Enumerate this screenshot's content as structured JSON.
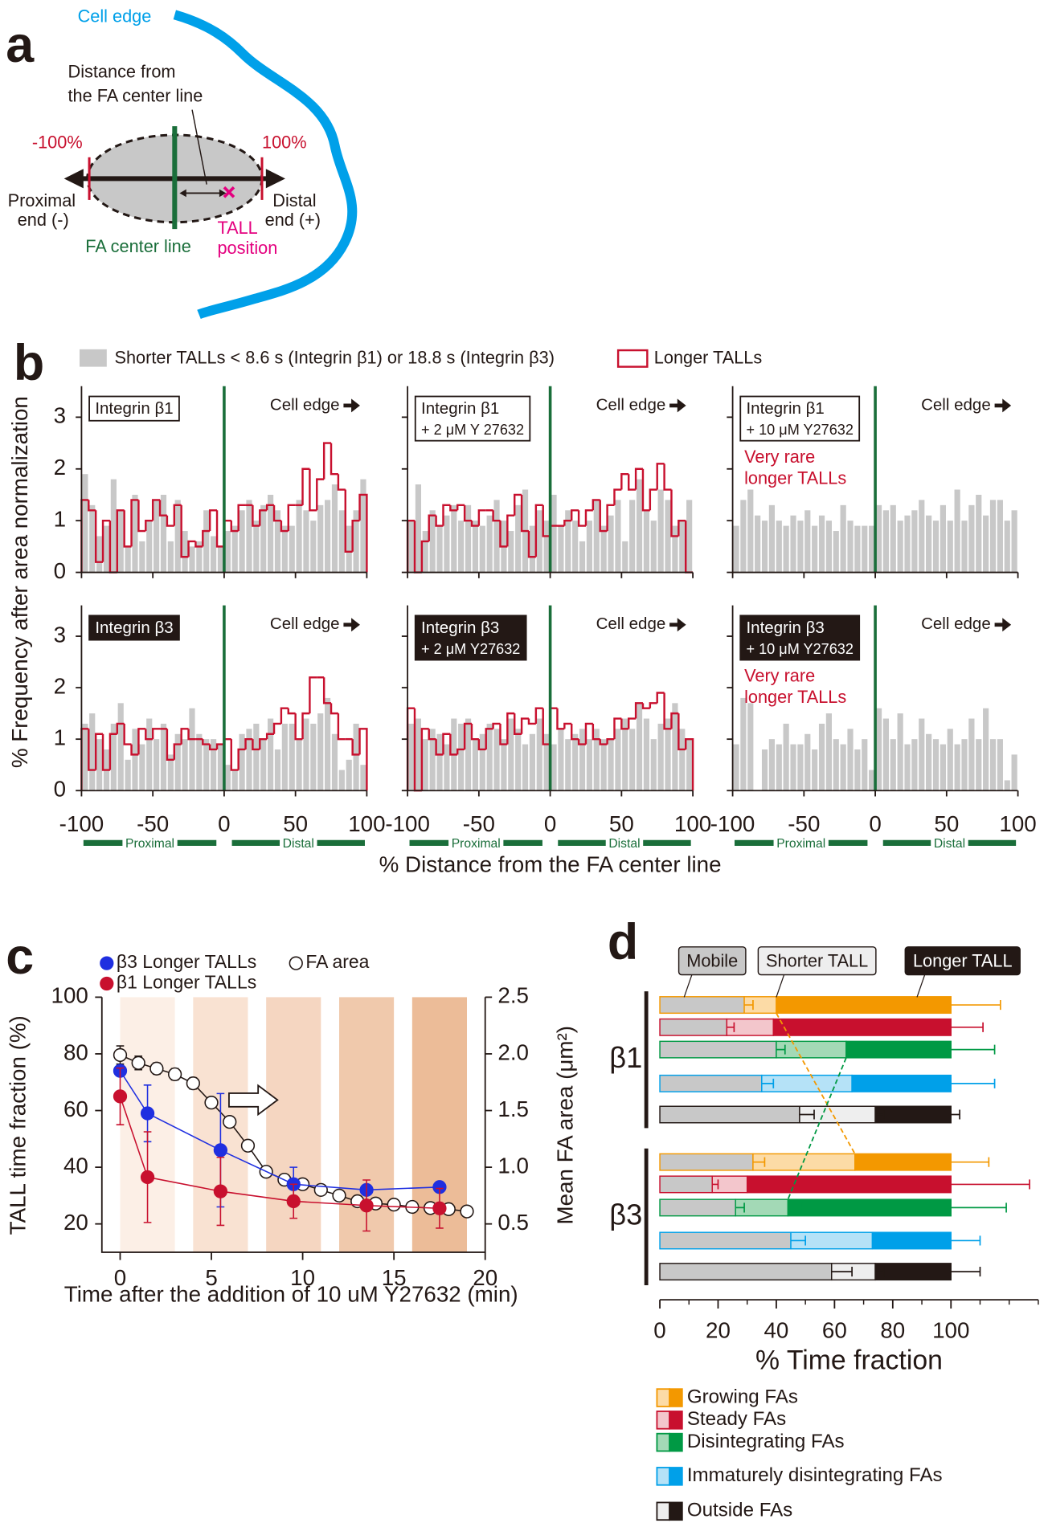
{
  "diagram": {
    "panel": "a",
    "cell_edge": "Cell edge",
    "distance_label": [
      "Distance from",
      "the FA center line"
    ],
    "minus": "-100%",
    "plus": "100%",
    "proximal": [
      "Proximal",
      "end (-)"
    ],
    "distal": [
      "Distal",
      "end (+)"
    ],
    "tall": [
      "TALL",
      "position"
    ],
    "center_line": "FA center line"
  },
  "chart_data": [
    {
      "type": "histogram",
      "panel": "b",
      "series": [
        {
          "name": "Shorter TALLs < 8.6 s (Integrin β1) or 18.8 s (Integrin β3)",
          "color": "#c8c8c8"
        },
        {
          "name": "Longer TALLs",
          "color": "#c8102e"
        }
      ],
      "ylabel": "% Frequency after area normalization",
      "xlabel": "% Distance from the FA center line",
      "edge_label": "Cell edge",
      "region_labels": [
        "Proximal",
        "Distal"
      ],
      "xlim": [
        -100,
        100
      ],
      "xticks": [
        -100,
        -50,
        0,
        50,
        100
      ],
      "ylim": [
        0,
        3.6
      ],
      "yticks": [
        0,
        1,
        2,
        3
      ],
      "bins": [
        -100,
        -95,
        -90,
        -85,
        -80,
        -75,
        -70,
        -65,
        -60,
        -55,
        -50,
        -45,
        -40,
        -35,
        -30,
        -25,
        -20,
        -15,
        -10,
        -5,
        0,
        5,
        10,
        15,
        20,
        25,
        30,
        35,
        40,
        45,
        50,
        55,
        60,
        65,
        70,
        75,
        80,
        85,
        90,
        95,
        100
      ],
      "panels": [
        {
          "label": [
            "Integrin β1"
          ],
          "dark": false,
          "values": [
            1.9,
            1.3,
            0.7,
            0.9,
            1.8,
            1.2,
            0.5,
            1.5,
            0.6,
            1.0,
            1.4,
            1.5,
            0.6,
            1.4,
            0.8,
            0.5,
            0.6,
            1.2,
            0.7,
            0.5,
            0.8,
            0.9,
            1.2,
            1.4,
            1.0,
            1.3,
            1.5,
            1.2,
            0.9,
            0.9,
            1.4,
            1.2,
            1.0,
            1.3,
            1.4,
            1.7,
            1.2,
            0.9,
            1.2,
            1.8
          ],
          "values2": [
            1.4,
            1.2,
            0.2,
            1.0,
            0.0,
            1.2,
            0.5,
            1.4,
            0.8,
            1.0,
            1.4,
            1.1,
            0.9,
            1.3,
            0.3,
            0.6,
            0.5,
            0.8,
            1.2,
            0.5,
            1.0,
            0.8,
            1.3,
            1.3,
            0.9,
            1.2,
            1.3,
            1.0,
            0.8,
            1.3,
            1.3,
            2.0,
            1.2,
            1.8,
            2.5,
            1.9,
            1.6,
            0.4,
            1.0,
            1.5
          ]
        },
        {
          "label": [
            "Integrin β1",
            "+ 2 μM Y 27632"
          ],
          "dark": false,
          "values": [
            1.0,
            1.7,
            0.8,
            1.2,
            0.9,
            1.1,
            1.3,
            1.0,
            1.3,
            1.0,
            0.9,
            1.1,
            1.4,
            1.0,
            0.8,
            1.3,
            1.6,
            0.9,
            1.2,
            1.0,
            1.5,
            0.9,
            1.2,
            1.0,
            0.6,
            1.0,
            1.4,
            0.9,
            1.1,
            1.4,
            0.6,
            1.4,
            1.8,
            1.2,
            1.0,
            1.6,
            1.4,
            0.9,
            1.0,
            1.4
          ],
          "values2": [
            1.0,
            0.0,
            0.6,
            1.1,
            0.9,
            1.3,
            1.2,
            1.3,
            1.0,
            0.9,
            1.2,
            1.2,
            1.0,
            0.5,
            1.1,
            1.5,
            0.8,
            0.3,
            1.3,
            0.7,
            0.9,
            0.9,
            1.0,
            1.2,
            0.9,
            1.2,
            1.4,
            0.8,
            1.3,
            1.6,
            1.9,
            1.6,
            2.0,
            1.2,
            1.6,
            2.1,
            1.6,
            0.7,
            1.0,
            0.0
          ]
        },
        {
          "label": [
            "Integrin β1",
            "+ 10 μM Y27632"
          ],
          "dark": false,
          "note": [
            "Very rare",
            "longer TALLs"
          ],
          "values": [
            0.9,
            1.4,
            1.6,
            1.1,
            1.0,
            1.3,
            1.0,
            0.9,
            1.1,
            1.0,
            1.2,
            0.9,
            1.1,
            1.0,
            0.8,
            1.3,
            1.0,
            0.9,
            0.9,
            0.9,
            1.3,
            1.2,
            1.3,
            1.0,
            1.1,
            1.2,
            1.4,
            1.1,
            1.0,
            1.3,
            1.0,
            1.6,
            1.0,
            1.3,
            1.5,
            1.1,
            1.4,
            1.4,
            1.0,
            1.2
          ]
        },
        {
          "label": [
            "Integrin β3"
          ],
          "dark": true,
          "values": [
            1.3,
            1.5,
            1.0,
            0.8,
            1.3,
            1.7,
            0.6,
            1.2,
            0.9,
            1.4,
            1.0,
            1.3,
            0.7,
            1.1,
            1.0,
            1.6,
            1.1,
            1.0,
            1.0,
            0.9,
            0.5,
            0.4,
            1.1,
            1.2,
            1.3,
            1.0,
            1.4,
            0.8,
            1.3,
            1.3,
            1.0,
            1.4,
            1.3,
            1.5,
            1.8,
            1.1,
            0.4,
            0.6,
            1.3,
            0.5
          ],
          "values2": [
            1.2,
            0.4,
            1.1,
            0.4,
            1.1,
            1.3,
            0.9,
            0.7,
            1.2,
            1.0,
            1.2,
            1.2,
            0.6,
            0.9,
            1.2,
            1.0,
            1.0,
            0.9,
            0.8,
            0.9,
            1.0,
            0.4,
            0.8,
            1.0,
            0.8,
            1.0,
            1.1,
            1.3,
            1.6,
            1.5,
            1.0,
            1.5,
            2.2,
            2.2,
            1.7,
            1.5,
            1.0,
            1.0,
            0.7,
            1.2
          ]
        },
        {
          "label": [
            "Integrin β3",
            "+ 2 μM Y27632"
          ],
          "dark": true,
          "values": [
            1.3,
            1.4,
            1.0,
            1.2,
            1.1,
            0.9,
            1.4,
            1.3,
            1.4,
            1.0,
            1.1,
            1.3,
            1.2,
            1.0,
            1.4,
            1.2,
            0.9,
            1.1,
            1.4,
            1.1,
            0.9,
            1.2,
            1.0,
            1.1,
            1.2,
            1.0,
            1.2,
            1.0,
            1.0,
            1.2,
            1.4,
            1.2,
            1.7,
            1.4,
            1.0,
            1.3,
            1.4,
            1.7,
            1.2,
            1.0
          ],
          "values2": [
            1.6,
            0.0,
            1.2,
            1.0,
            0.7,
            1.1,
            0.7,
            0.8,
            1.3,
            1.0,
            0.8,
            1.2,
            1.3,
            0.9,
            1.5,
            1.1,
            1.4,
            1.3,
            1.6,
            0.9,
            1.6,
            1.2,
            1.3,
            1.0,
            0.9,
            1.3,
            1.0,
            0.9,
            1.0,
            1.4,
            1.2,
            1.4,
            1.7,
            1.6,
            1.7,
            1.9,
            1.2,
            1.5,
            0.8,
            1.0
          ]
        },
        {
          "label": [
            "Integrin β3",
            "+ 10 μM Y27632"
          ],
          "dark": true,
          "note": [
            "Very rare",
            "longer TALLs"
          ],
          "values": [
            0.9,
            1.8,
            1.7,
            0.0,
            0.8,
            1.0,
            0.9,
            1.3,
            0.9,
            0.9,
            1.1,
            0.8,
            1.3,
            1.5,
            1.0,
            0.9,
            1.2,
            0.8,
            1.0,
            0.4,
            1.6,
            1.4,
            1.0,
            1.5,
            0.9,
            1.0,
            1.4,
            1.1,
            1.0,
            0.9,
            1.2,
            0.9,
            1.0,
            1.4,
            1.0,
            1.6,
            1.0,
            1.0,
            0.2,
            0.7
          ]
        }
      ]
    },
    {
      "type": "line",
      "panel": "c",
      "xlabel": "Time after the addition of 10 uM Y27632 (min)",
      "ylabel": "TALL time fraction (%)",
      "y2label": "Mean FA area (μm²)",
      "xlim": [
        -1,
        20
      ],
      "xticks": [
        0,
        5,
        10,
        15,
        20
      ],
      "ylim": [
        10,
        100
      ],
      "yticks": [
        20,
        40,
        60,
        80,
        100
      ],
      "y2lim": [
        0.25,
        2.5
      ],
      "y2ticks": [
        0.5,
        {
          "value": 1,
          "label": "1.0"
        },
        1.5,
        {
          "value": 2,
          "label": "2.0"
        },
        2.5
      ],
      "shading": [
        {
          "x": [
            0,
            3
          ],
          "color": "#fcefe6"
        },
        {
          "x": [
            4,
            7
          ],
          "color": "#f9e2d2"
        },
        {
          "x": [
            8,
            11
          ],
          "color": "#f5d6c1"
        },
        {
          "x": [
            12,
            15
          ],
          "color": "#f0c9ac"
        },
        {
          "x": [
            16,
            19
          ],
          "color": "#ecbc98"
        }
      ],
      "series": [
        {
          "name": "β3 Longer TALLs",
          "color": "#1f2fe0",
          "marker": "filled",
          "x": [
            0,
            1.5,
            5.5,
            9.5,
            13.5,
            17.5
          ],
          "values": [
            74,
            59,
            46,
            34,
            32,
            33
          ],
          "errors": [
            null,
            10,
            20,
            6,
            null,
            null
          ]
        },
        {
          "name": "β1 Longer TALLs",
          "color": "#c8102e",
          "marker": "filled",
          "x": [
            0,
            1.5,
            5.5,
            9.5,
            13.5,
            17.5
          ],
          "values": [
            65,
            36.5,
            31.5,
            28,
            26.5,
            25.5
          ],
          "errors": [
            10,
            16,
            12,
            6,
            9,
            7
          ]
        },
        {
          "name": "FA area",
          "color": "#231815",
          "marker": "open",
          "axis": "y2",
          "x": [
            0,
            1,
            2,
            3,
            4,
            5,
            6,
            7,
            8,
            9,
            10,
            11,
            12,
            13,
            14,
            15,
            16,
            17,
            18,
            19
          ],
          "values": [
            1.99,
            1.92,
            1.87,
            1.82,
            1.74,
            1.57,
            1.4,
            1.19,
            0.96,
            0.89,
            0.85,
            0.8,
            0.75,
            0.7,
            0.68,
            0.67,
            0.65,
            0.64,
            0.63,
            0.61
          ],
          "errors": [
            0.08,
            0.06,
            0.05,
            0.05,
            0.05,
            0.04,
            0.03,
            0.02,
            null,
            null,
            null,
            null,
            null,
            null,
            null,
            null,
            null,
            null,
            null,
            null
          ]
        }
      ]
    },
    {
      "type": "stacked-bar",
      "panel": "d",
      "orientation": "horizontal",
      "xlabel": "% Time fraction",
      "xlim": [
        0,
        130
      ],
      "xticks": [
        0,
        20,
        40,
        60,
        80,
        100
      ],
      "minor_xticks": [
        10,
        30,
        50,
        70,
        90,
        110,
        120,
        130
      ],
      "groups": [
        "β1",
        "β3"
      ],
      "categories": [
        {
          "name": "Growing FAs",
          "color": "#f39800",
          "light": "#fcdba6"
        },
        {
          "name": "Steady FAs",
          "color": "#c8102e",
          "light": "#f3c6cc"
        },
        {
          "name": "Disintegrating FAs",
          "color": "#009944",
          "light": "#a3d9b6"
        },
        {
          "name": "Immaturely disintegrating FAs",
          "color": "#00a0e9",
          "light": "#b5e2f7"
        },
        {
          "name": "Outside FAs",
          "color": "#231815",
          "light": "#eeeeee"
        }
      ],
      "series": [
        {
          "name": "Mobile",
          "color": "#c8c8c8",
          "values": [
            [
              29,
              23,
              40,
              35,
              48
            ],
            [
              32,
              18,
              26,
              45,
              59
            ]
          ],
          "errors": [
            [
              3,
              2.5,
              3,
              4,
              5
            ],
            [
              4,
              2,
              3,
              5,
              7
            ]
          ]
        },
        {
          "name": "Shorter TALL",
          "color": "#eeeeee",
          "values": [
            [
              11,
              16,
              24,
              31,
              26
            ],
            [
              35,
              12,
              18,
              28,
              15
            ]
          ],
          "errors": [
            [
              1.5,
              1.5,
              6,
              9,
              3
            ],
            [
              7,
              2,
              5,
              7,
              3
            ]
          ]
        },
        {
          "name": "Longer TALL",
          "color": "#231815",
          "values": [
            [
              60,
              61,
              36,
              34,
              26
            ],
            [
              33,
              70,
              56,
              27,
              26
            ]
          ],
          "errors": [
            [
              17,
              11,
              15,
              15,
              3
            ],
            [
              13,
              27,
              19,
              10,
              10
            ]
          ]
        }
      ]
    }
  ]
}
